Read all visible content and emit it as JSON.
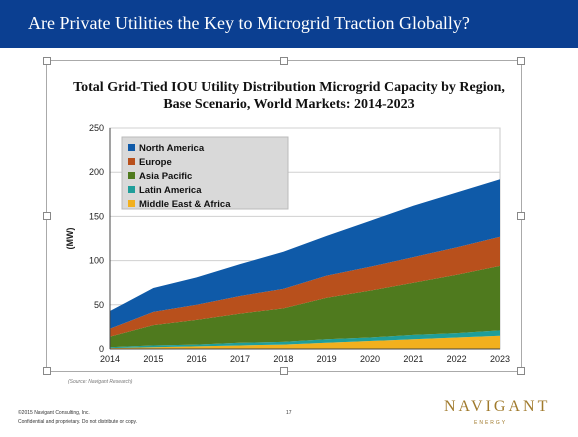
{
  "header": {
    "title": "Are Private Utilities the Key to Microgrid Traction Globally?"
  },
  "chart_data": {
    "type": "area",
    "stacked": true,
    "title_line1": "Total Grid-Tied IOU Utility Distribution Microgrid Capacity by Region,",
    "title_line2": "Base Scenario, World Markets: 2014-2023",
    "ylabel": "(MW)",
    "xlabel": "",
    "x": [
      2014,
      2015,
      2016,
      2017,
      2018,
      2019,
      2020,
      2021,
      2022,
      2023
    ],
    "ylim": [
      0,
      250
    ],
    "yticks": [
      0,
      50,
      100,
      150,
      200,
      250
    ],
    "legend_position": "top-left",
    "series": [
      {
        "name": "Middle East & Africa",
        "color": "#f2b01e",
        "values": [
          1,
          2,
          3,
          4,
          5,
          7,
          9,
          11,
          13,
          15
        ]
      },
      {
        "name": "Latin America",
        "color": "#1f9e9a",
        "values": [
          1,
          2,
          2,
          3,
          3,
          4,
          4,
          5,
          5,
          6
        ]
      },
      {
        "name": "Asia Pacific",
        "color": "#4f7a1e",
        "values": [
          12,
          23,
          28,
          33,
          38,
          47,
          53,
          59,
          66,
          73
        ]
      },
      {
        "name": "Europe",
        "color": "#b8501c",
        "values": [
          9,
          15,
          17,
          20,
          22,
          25,
          27,
          29,
          31,
          33
        ]
      },
      {
        "name": "North America",
        "color": "#0f5aa8",
        "values": [
          20,
          27,
          31,
          36,
          42,
          45,
          52,
          58,
          62,
          65
        ]
      }
    ],
    "legend_order": [
      "North America",
      "Europe",
      "Asia Pacific",
      "Latin America",
      "Middle East & Africa"
    ],
    "source": "(Source: Navigant Research)"
  },
  "footer": {
    "copyright": "©2015 Navigant Consulting, Inc.",
    "confidential": "Confidential and proprietary. Do not distribute or copy.",
    "page": "17"
  },
  "logo": {
    "name": "NAVIGANT",
    "sub": "ENERGY"
  }
}
